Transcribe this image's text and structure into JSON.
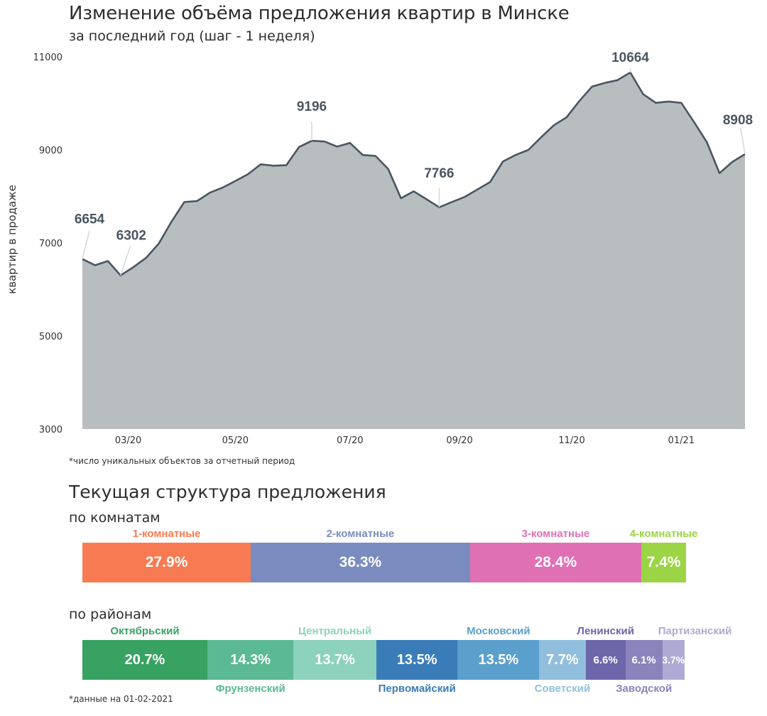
{
  "header": {
    "title": "Изменение объёма предложения квартир в Минске",
    "subtitle": "за последний год (шаг - 1 неделя)"
  },
  "chart_data": {
    "type": "area",
    "title": "Изменение объёма предложения квартир в Минске",
    "subtitle": "за последний год (шаг - 1 неделя)",
    "xlabel": "",
    "ylabel": "квартир в продаже",
    "ylim": [
      3000,
      11000
    ],
    "yticks": [
      "11000",
      "9000",
      "7000",
      "5000",
      "3000"
    ],
    "ytick_values": [
      11000,
      9000,
      7000,
      5000,
      3000
    ],
    "xticks": [
      "03/20",
      "05/20",
      "07/20",
      "09/20",
      "11/20",
      "01/21"
    ],
    "xtick_index": [
      3.6,
      12.0,
      21.0,
      29.6,
      38.4,
      47.0
    ],
    "grid": false,
    "fill_color": "#b8bdc0",
    "line_color": "#4a5660",
    "values": [
      6654,
      6520,
      6610,
      6302,
      6480,
      6680,
      6990,
      7460,
      7880,
      7900,
      8080,
      8190,
      8330,
      8480,
      8690,
      8660,
      8670,
      9060,
      9196,
      9180,
      9070,
      9150,
      8890,
      8870,
      8590,
      7960,
      8110,
      7940,
      7766,
      7880,
      7990,
      8150,
      8310,
      8750,
      8890,
      9000,
      9270,
      9530,
      9700,
      10050,
      10360,
      10440,
      10500,
      10664,
      10200,
      10010,
      10040,
      10010,
      9600,
      9170,
      8500,
      8740,
      8908
    ],
    "annotations": [
      {
        "index": 0,
        "label": "6654"
      },
      {
        "index": 3,
        "label": "6302"
      },
      {
        "index": 18,
        "label": "9196"
      },
      {
        "index": 28,
        "label": "7766"
      },
      {
        "index": 43,
        "label": "10664"
      },
      {
        "index": 52,
        "label": "8908"
      }
    ],
    "footnote": "*число уникальных объектов за отчетный период"
  },
  "structure": {
    "title": "Текущая структура предложения",
    "rooms": {
      "title": "по комнатам",
      "segments": [
        {
          "label": "1-комнатные",
          "value": 27.9,
          "text": "27.9%",
          "color": "#f87a52"
        },
        {
          "label": "2-комнатные",
          "value": 36.3,
          "text": "36.3%",
          "color": "#7a8cbf"
        },
        {
          "label": "3-комнатные",
          "value": 28.4,
          "text": "28.4%",
          "color": "#e070b4"
        },
        {
          "label": "4-комнатные",
          "value": 7.4,
          "text": "7.4%",
          "color": "#9bd444"
        }
      ]
    },
    "districts": {
      "title": "по районам",
      "segments": [
        {
          "label": "Октябрьский",
          "value": 20.7,
          "text": "20.7%",
          "color": "#38a262",
          "pos": "top"
        },
        {
          "label": "Фрунзенский",
          "value": 14.3,
          "text": "14.3%",
          "color": "#5bb993",
          "pos": "bottom"
        },
        {
          "label": "Центральный",
          "value": 13.7,
          "text": "13.7%",
          "color": "#8cd2bd",
          "pos": "top"
        },
        {
          "label": "Первомайский",
          "value": 13.5,
          "text": "13.5%",
          "color": "#3a7cb8",
          "pos": "bottom"
        },
        {
          "label": "Московский",
          "value": 13.5,
          "text": "13.5%",
          "color": "#5b9fcd",
          "pos": "top"
        },
        {
          "label": "Советский",
          "value": 7.7,
          "text": "7.7%",
          "color": "#91bedd",
          "pos": "bottom"
        },
        {
          "label": "Ленинский",
          "value": 6.6,
          "text": "6.6%",
          "color": "#6d66aa",
          "pos": "top"
        },
        {
          "label": "Заводской",
          "value": 6.1,
          "text": "6.1%",
          "color": "#8b83bb",
          "pos": "bottom"
        },
        {
          "label": "Партизанский",
          "value": 3.7,
          "text": "3.7%",
          "color": "#aeaad4",
          "pos": "top"
        }
      ],
      "footnote": "*данные на 01-02-2021"
    }
  }
}
